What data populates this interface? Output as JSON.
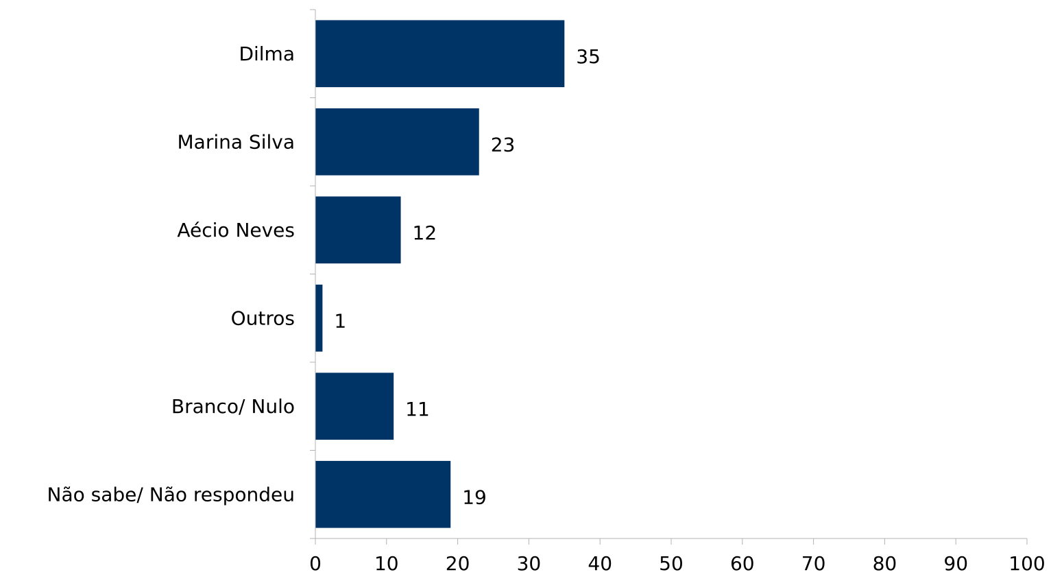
{
  "chart_data": {
    "type": "bar",
    "orientation": "horizontal",
    "title": "",
    "xlabel": "",
    "ylabel": "",
    "categories": [
      "Dilma",
      "Marina Silva",
      "Aécio Neves",
      "Outros",
      "Branco/ Nulo",
      "Não sabe/ Não respondeu"
    ],
    "values": [
      35,
      23,
      12,
      1,
      11,
      19
    ],
    "xlim": [
      0,
      100
    ],
    "xticks": [
      0,
      10,
      20,
      30,
      40,
      50,
      60,
      70,
      80,
      90,
      100
    ],
    "grid": false,
    "legend": "none",
    "data_labels": true,
    "bar_color": "#003366",
    "axis_color": "#b3b3b3"
  }
}
